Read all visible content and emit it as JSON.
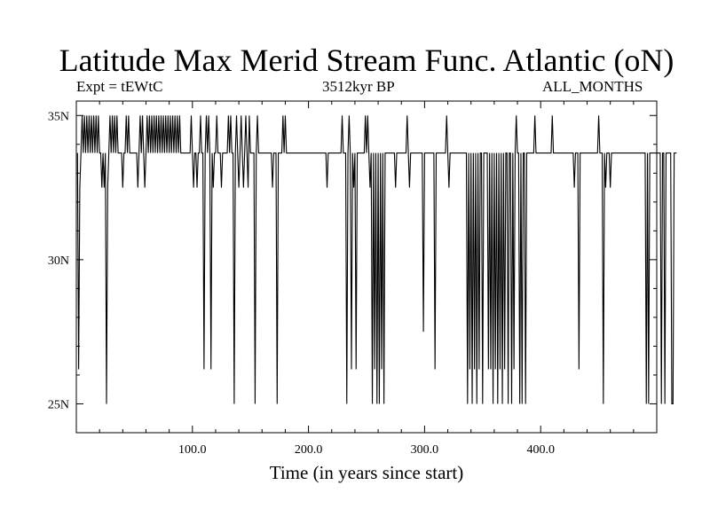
{
  "header": {
    "title": "Latitude Max Merid Stream Func. Atlantic (oN)",
    "left_label": "Expt = tEWtC",
    "center_label": "3512kyr BP",
    "right_label": "ALL_MONTHS"
  },
  "chart_data": {
    "type": "line",
    "title": "Latitude Max Merid Stream Func. Atlantic (oN)",
    "xlabel": "Time (in years since start)",
    "ylabel": "",
    "xlim": [
      0,
      500
    ],
    "ylim": [
      24,
      35.5
    ],
    "x_ticks": [
      100,
      200,
      300,
      400
    ],
    "x_tick_labels": [
      "100.0",
      "200.0",
      "300.0",
      "400.0"
    ],
    "y_ticks": [
      25,
      30,
      35
    ],
    "y_tick_labels": [
      "25N",
      "30N",
      "35N"
    ],
    "grid": false,
    "legend": "none",
    "line_color": "#000000",
    "series": [
      {
        "x_start": 1,
        "x_step": 1,
        "values": [
          33.7,
          26.2,
          32.5,
          33.7,
          35,
          33.7,
          35,
          33.7,
          35,
          33.7,
          35,
          33.7,
          35,
          33.7,
          35,
          33.7,
          35,
          33.7,
          35,
          33.7,
          33.7,
          32.5,
          33.7,
          32.5,
          33.7,
          25,
          32.5,
          33.7,
          35,
          33.7,
          35,
          33.7,
          35,
          33.7,
          35,
          33.7,
          33.7,
          33.7,
          33.7,
          32.5,
          33.7,
          33.7,
          35,
          33.7,
          35,
          33.7,
          33.7,
          33.7,
          33.7,
          33.7,
          33.7,
          33.7,
          32.5,
          33.7,
          35,
          33.7,
          35,
          33.7,
          32.5,
          33.7,
          35,
          33.7,
          35,
          33.7,
          35,
          33.7,
          35,
          33.7,
          35,
          33.7,
          35,
          33.7,
          35,
          33.7,
          35,
          33.7,
          35,
          33.7,
          35,
          33.7,
          35,
          33.7,
          35,
          33.7,
          35,
          33.7,
          35,
          33.7,
          35,
          33.7,
          33.7,
          33.7,
          33.7,
          33.7,
          33.7,
          33.7,
          33.7,
          33.7,
          35,
          33.7,
          32.5,
          33.7,
          33.7,
          32.5,
          33.7,
          33.7,
          35,
          33.7,
          33.7,
          26.2,
          33.7,
          35,
          33.7,
          35,
          33.7,
          26.2,
          33.7,
          32.5,
          33.7,
          33.7,
          35,
          33.7,
          33.7,
          33.7,
          32.5,
          33.7,
          33.7,
          33.7,
          33.7,
          33.7,
          35,
          33.7,
          35,
          33.7,
          33.7,
          25,
          33.7,
          35,
          33.7,
          32.5,
          33.7,
          35,
          33.7,
          32.5,
          33.7,
          35,
          33.7,
          32.5,
          35,
          33.7,
          33.7,
          33.7,
          33.7,
          25,
          33.7,
          35,
          33.7,
          33.7,
          33.7,
          33.7,
          33.7,
          33.7,
          33.7,
          33.7,
          33.7,
          33.7,
          33.7,
          33.7,
          32.5,
          33.7,
          33.7,
          33.7,
          25,
          33.7,
          33.7,
          33.7,
          33.7,
          35,
          33.7,
          35,
          33.7,
          33.7,
          33.7,
          33.7,
          33.7,
          33.7,
          33.7,
          33.7,
          33.7,
          33.7,
          33.7,
          33.7,
          33.7,
          33.7,
          33.7,
          33.7,
          33.7,
          33.7,
          33.7,
          33.7,
          33.7,
          33.7,
          33.7,
          33.7,
          33.7,
          33.7,
          33.7,
          33.7,
          33.7,
          33.7,
          33.7,
          33.7,
          33.7,
          33.7,
          33.7,
          32.5,
          33.7,
          33.7,
          33.7,
          33.7,
          33.7,
          33.7,
          33.7,
          33.7,
          33.7,
          33.7,
          33.7,
          33.7,
          35,
          33.7,
          33.7,
          33.7,
          25,
          33.7,
          35,
          33.7,
          26.2,
          33.7,
          32.5,
          33.7,
          26.2,
          33.7,
          33.7,
          33.7,
          33.7,
          33.7,
          33.7,
          33.7,
          35,
          33.7,
          35,
          33.7,
          32.5,
          33.7,
          25,
          33.7,
          26.2,
          33.7,
          25,
          33.7,
          25,
          33.7,
          26.2,
          33.7,
          25,
          33.7,
          33.7,
          33.7,
          33.7,
          33.7,
          33.7,
          33.7,
          33.7,
          33.7,
          32.5,
          33.7,
          33.7,
          33.7,
          33.7,
          33.7,
          33.7,
          33.7,
          33.7,
          33.7,
          35,
          33.7,
          32.5,
          33.7,
          33.7,
          33.7,
          33.7,
          33.7,
          33.7,
          33.7,
          33.7,
          33.7,
          33.7,
          33.7,
          27.5,
          33.7,
          33.7,
          33.7,
          33.7,
          33.7,
          33.7,
          33.7,
          33.7,
          33.7,
          26.2,
          33.7,
          33.7,
          33.7,
          33.7,
          33.7,
          33.7,
          33.7,
          33.7,
          33.7,
          35,
          33.7,
          32.5,
          33.7,
          33.7,
          33.7,
          33.7,
          33.7,
          33.7,
          33.7,
          33.7,
          33.7,
          33.7,
          33.7,
          33.7,
          33.7,
          33.7,
          33.7,
          25,
          33.7,
          26.2,
          33.7,
          25,
          33.7,
          26.2,
          33.7,
          25,
          33.7,
          26.2,
          33.7,
          33.7,
          25,
          33.7,
          33.7,
          33.7,
          33.7,
          26.2,
          33.7,
          26.2,
          33.7,
          25,
          33.7,
          26.2,
          33.7,
          25,
          33.7,
          26.2,
          33.7,
          25,
          33.7,
          26.2,
          33.7,
          33.7,
          25,
          33.7,
          33.7,
          25,
          33.7,
          26.2,
          33.7,
          35,
          33.7,
          33.7,
          25,
          33.7,
          25,
          33.7,
          33.7,
          25,
          33.7,
          33.7,
          33.7,
          33.7,
          33.7,
          33.7,
          33.7,
          35,
          33.7,
          33.7,
          33.7,
          33.7,
          33.7,
          33.7,
          33.7,
          33.7,
          33.7,
          33.7,
          33.7,
          33.7,
          33.7,
          33.7,
          35,
          33.7,
          33.7,
          33.7,
          33.7,
          33.7,
          33.7,
          33.7,
          33.7,
          33.7,
          33.7,
          33.7,
          33.7,
          33.7,
          33.7,
          33.7,
          33.7,
          33.7,
          33.7,
          32.5,
          33.7,
          33.7,
          33.7,
          26.2,
          33.7,
          33.7,
          33.7,
          33.7,
          33.7,
          33.7,
          33.7,
          33.7,
          33.7,
          33.7,
          33.7,
          33.7,
          33.7,
          33.7,
          33.7,
          33.7,
          35,
          33.7,
          33.7,
          33.7,
          25,
          33.7,
          32.5,
          33.7,
          33.7,
          33.7,
          32.5,
          33.7,
          33.7,
          33.7,
          33.7,
          33.7,
          33.7,
          33.7,
          33.7,
          33.7,
          33.7,
          33.7,
          33.7,
          33.7,
          33.7,
          33.7,
          33.7,
          33.7,
          33.7,
          33.7,
          33.7,
          33.7,
          33.7,
          33.7,
          33.7,
          33.7,
          33.7,
          33.7,
          33.7,
          33.7,
          33.7,
          25,
          33.7,
          25,
          33.7,
          33.7,
          33.7,
          33.7,
          33.7,
          33.7,
          33.7,
          33.7,
          33.7,
          33.7,
          25,
          33.7,
          33.7,
          25,
          33.7,
          33.7,
          33.7,
          33.7,
          33.7,
          25,
          25,
          33.7,
          33.7,
          33.7
        ]
      }
    ]
  }
}
